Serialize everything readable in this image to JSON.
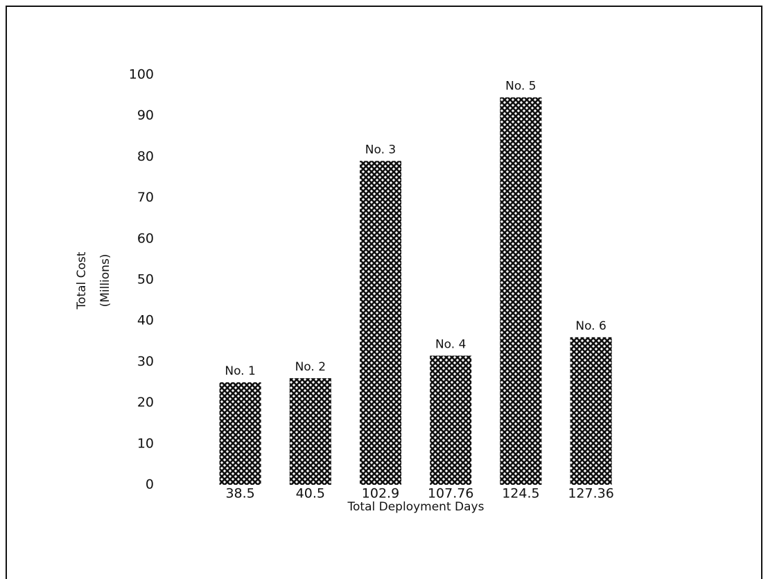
{
  "chart_data": {
    "type": "bar",
    "categories": [
      "38.5",
      "40.5",
      "102.9",
      "107.76",
      "124.5",
      "127.36"
    ],
    "values": [
      25,
      26,
      79,
      31.5,
      94.5,
      36
    ],
    "annotations": [
      "No. 1",
      "No. 2",
      "No. 3",
      "No. 4",
      "No. 5",
      "No. 6"
    ],
    "color": "#111111",
    "x_label": "Total Deployment Days",
    "y_label": [
      "Total Cost",
      "(Millions)"
    ],
    "ylim": [
      0,
      100
    ],
    "yticks": [
      0,
      10,
      20,
      30,
      40,
      50,
      60,
      70,
      80,
      90,
      100
    ],
    "grid": false
  }
}
